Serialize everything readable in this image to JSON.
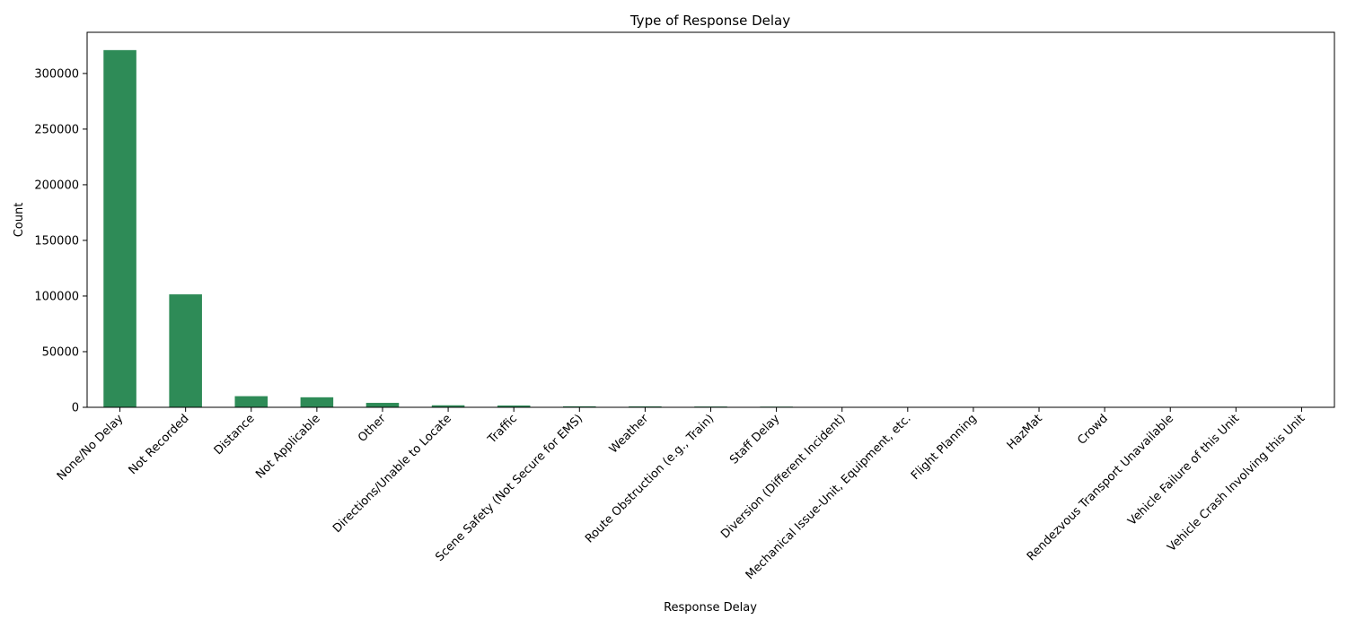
{
  "chart_data": {
    "type": "bar",
    "title": "Type of Response Delay",
    "xlabel": "Response Delay",
    "ylabel": "Count",
    "ylim": [
      0,
      337000
    ],
    "yticks": [
      0,
      50000,
      100000,
      150000,
      200000,
      250000,
      300000
    ],
    "ytick_labels": [
      "0",
      "50000",
      "100000",
      "150000",
      "200000",
      "250000",
      "300000"
    ],
    "grid": false,
    "legend": "none",
    "bar_color": "#2e8b57",
    "categories": [
      "None/No Delay",
      "Not Recorded",
      "Distance",
      "Not Applicable",
      "Other",
      "Directions/Unable to Locate",
      "Traffic",
      "Scene Safety (Not Secure for EMS)",
      "Weather",
      "Route Obstruction (e.g., Train)",
      "Staff Delay",
      "Diversion (Different Incident)",
      "Mechanical Issue-Unit, Equipment, etc.",
      "Flight Planning",
      "HazMat",
      "Crowd",
      "Rendezvous Transport Unavailable",
      "Vehicle Failure of this Unit",
      "Vehicle Crash Involving this Unit"
    ],
    "values": [
      321000,
      101500,
      10000,
      9000,
      4000,
      1800,
      1600,
      900,
      800,
      700,
      600,
      150,
      100,
      60,
      40,
      30,
      20,
      15,
      10
    ]
  }
}
